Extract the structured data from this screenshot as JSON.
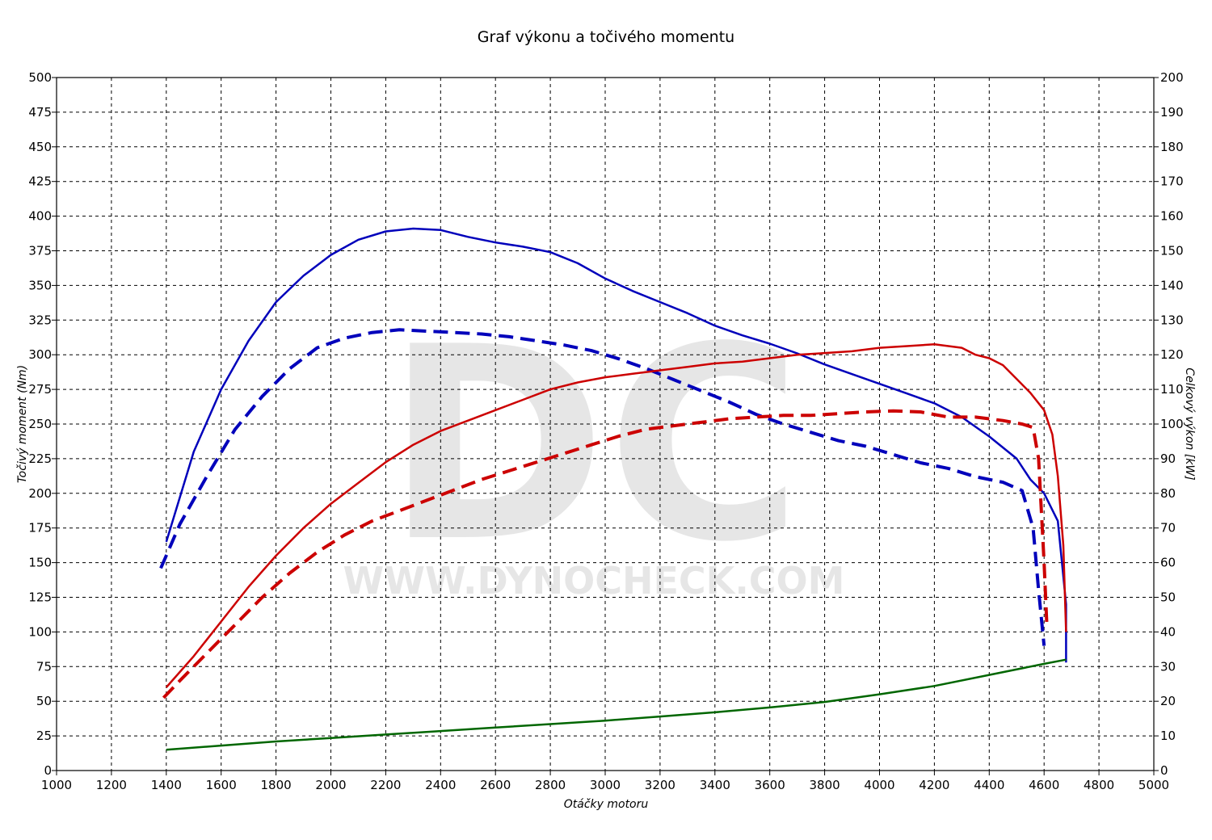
{
  "chart_data": {
    "type": "line",
    "title": "Graf výkonu a točivého momentu",
    "xlabel": "Otáčky motoru",
    "ylabel": "Točivý moment (Nm)",
    "y2label": "Celkový výkon [kW]",
    "xlim": [
      1000,
      5000
    ],
    "ylim": [
      0,
      500
    ],
    "y2lim": [
      0,
      200
    ],
    "grid": true,
    "xticks": [
      "1000",
      "1200",
      "1400",
      "1600",
      "1800",
      "2000",
      "2200",
      "2400",
      "2600",
      "2800",
      "3000",
      "3200",
      "3400",
      "3600",
      "3800",
      "4000",
      "4200",
      "4400",
      "4600",
      "4800",
      "5000"
    ],
    "yticks": [
      "0",
      "25",
      "50",
      "75",
      "100",
      "125",
      "150",
      "175",
      "200",
      "225",
      "250",
      "275",
      "300",
      "325",
      "350",
      "375",
      "400",
      "425",
      "450",
      "475",
      "500"
    ],
    "y2ticks": [
      "0",
      "10",
      "20",
      "30",
      "40",
      "50",
      "60",
      "70",
      "80",
      "90",
      "100",
      "110",
      "120",
      "130",
      "140",
      "150",
      "160",
      "170",
      "180",
      "190",
      "200"
    ],
    "watermark": {
      "logo": "DC",
      "url": "WWW.DYNOCHECK.COM"
    },
    "series": [
      {
        "axis": "left",
        "color": "#0000bb",
        "style": "solid",
        "x": [
          1400,
          1500,
          1600,
          1700,
          1800,
          1900,
          2000,
          2100,
          2200,
          2300,
          2400,
          2500,
          2600,
          2700,
          2800,
          2900,
          3000,
          3100,
          3200,
          3300,
          3400,
          3500,
          3600,
          3700,
          3800,
          3900,
          4000,
          4100,
          4200,
          4300,
          4400,
          4500,
          4550,
          4600,
          4650,
          4680,
          4680
        ],
        "y": [
          165,
          230,
          275,
          310,
          338,
          357,
          372,
          383,
          389,
          391,
          390,
          385,
          381,
          378,
          374,
          366,
          355,
          346,
          338,
          330,
          321,
          314,
          308,
          301,
          293,
          286,
          279,
          272,
          265,
          255,
          241,
          225,
          210,
          200,
          180,
          120,
          78
        ]
      },
      {
        "axis": "left",
        "color": "#0000bb",
        "style": "dashed",
        "x": [
          1380,
          1450,
          1550,
          1650,
          1750,
          1850,
          1950,
          2050,
          2150,
          2250,
          2350,
          2450,
          2550,
          2650,
          2750,
          2850,
          2950,
          3050,
          3150,
          3250,
          3350,
          3450,
          3550,
          3650,
          3750,
          3850,
          3950,
          4050,
          4150,
          4250,
          4350,
          4450,
          4520,
          4560,
          4580,
          4600
        ],
        "y": [
          146,
          178,
          213,
          246,
          270,
          290,
          305,
          312,
          316,
          318,
          317,
          316,
          315,
          313,
          310,
          307,
          303,
          297,
          290,
          282,
          274,
          266,
          257,
          250,
          244,
          238,
          234,
          228,
          222,
          218,
          212,
          208,
          202,
          175,
          130,
          90
        ]
      },
      {
        "axis": "right",
        "color": "#cc0000",
        "style": "solid",
        "x": [
          1400,
          1500,
          1600,
          1700,
          1800,
          1900,
          2000,
          2100,
          2200,
          2300,
          2400,
          2500,
          2600,
          2700,
          2800,
          2900,
          3000,
          3100,
          3200,
          3300,
          3400,
          3500,
          3600,
          3700,
          3800,
          3900,
          4000,
          4100,
          4200,
          4300,
          4350,
          4400,
          4450,
          4500,
          4550,
          4600,
          4630,
          4650,
          4670,
          4680
        ],
        "y": [
          24,
          33,
          43,
          53,
          62,
          70,
          77,
          83,
          89,
          94,
          98,
          101,
          104,
          107,
          110,
          112,
          113.5,
          114.5,
          115.5,
          116.5,
          117.5,
          118,
          119,
          120,
          120.5,
          121,
          122,
          122.5,
          123,
          122,
          120,
          119,
          117,
          113,
          109,
          104,
          97,
          85,
          65,
          40
        ]
      },
      {
        "axis": "right",
        "color": "#cc0000",
        "style": "dashed",
        "x": [
          1390,
          1450,
          1550,
          1650,
          1750,
          1850,
          1950,
          2050,
          2150,
          2250,
          2350,
          2450,
          2550,
          2650,
          2750,
          2850,
          2950,
          3050,
          3150,
          3250,
          3350,
          3450,
          3550,
          3650,
          3750,
          3850,
          3950,
          4050,
          4150,
          4250,
          4350,
          4450,
          4520,
          4560,
          4580,
          4600,
          4610
        ],
        "y": [
          21,
          26,
          34,
          42,
          50,
          57,
          63,
          68,
          72,
          75,
          78,
          81,
          84,
          86.5,
          89,
          91.5,
          94,
          96.5,
          98.5,
          99.5,
          100.5,
          101.5,
          102,
          102.5,
          102.5,
          103,
          103.5,
          103.8,
          103.5,
          102,
          102,
          101,
          100,
          99,
          90,
          60,
          42
        ]
      },
      {
        "axis": "left",
        "color": "#006600",
        "style": "solid",
        "x": [
          1400,
          1600,
          1800,
          2000,
          2200,
          2400,
          2600,
          2800,
          3000,
          3200,
          3400,
          3600,
          3800,
          4000,
          4200,
          4400,
          4600,
          4680
        ],
        "y": [
          15,
          18,
          21,
          23.5,
          26,
          28.5,
          31,
          33.5,
          36,
          39,
          42,
          45.5,
          49.5,
          55,
          61,
          69,
          77,
          80
        ]
      }
    ]
  }
}
